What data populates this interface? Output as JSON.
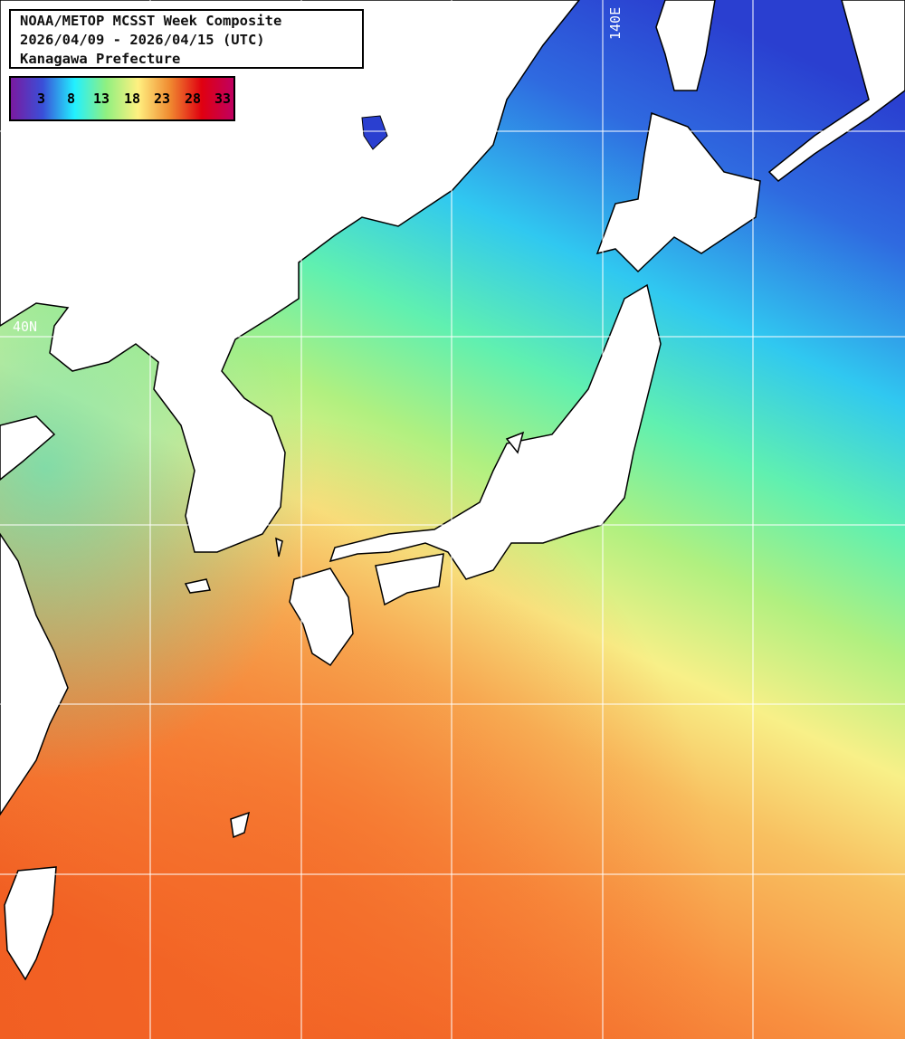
{
  "header": {
    "title": "NOAA/METOP MCSST Week Composite",
    "date_range": "2026/04/09 - 2026/04/15 (UTC)",
    "region": "Kanagawa Prefecture"
  },
  "legend": {
    "ticks": [
      "3",
      "8",
      "13",
      "18",
      "23",
      "28",
      "33"
    ],
    "colors": [
      "#7a1aa0",
      "#3a4fd8",
      "#22f0ff",
      "#90f080",
      "#fff080",
      "#f08a30",
      "#e00010",
      "#c00060"
    ]
  },
  "grid": {
    "lon_label": "140E",
    "lat_label": "40N"
  },
  "colors": {
    "land": "#ffffff",
    "coastline": "#000000",
    "gridline": "#ffffff"
  }
}
